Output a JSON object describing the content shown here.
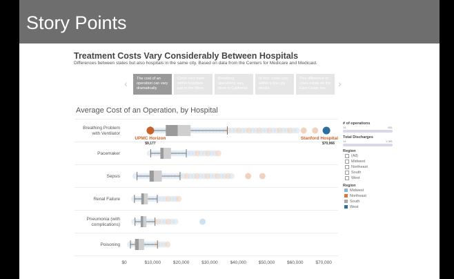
{
  "header": {
    "title": "Story Points"
  },
  "dashboard": {
    "title": "Treatment Costs Vary Considerably Between Hospitals",
    "subtitle": "Differences between states but also hospitals in the same city. Based on data from the Centers for Medicare and Medicaid."
  },
  "story_points": [
    {
      "label": "The cost of an operation can vary dramatically",
      "active": true
    },
    {
      "label": "Costs vary even within hospitals just in the West"
    },
    {
      "label": "Breathing operations vary most in California"
    },
    {
      "label": "In fact, costs vary within a few city blocks"
    },
    {
      "label": "This difference in costs exists on the East Coast, too"
    }
  ],
  "icons": {
    "prev": "chevron-left-icon",
    "next": "chevron-right-icon"
  },
  "sidebar": {
    "ops": {
      "title": "# of operations",
      "min": "14",
      "max": "651"
    },
    "discharges": {
      "title": "Total Discharges",
      "min": "14",
      "max": "1,381"
    },
    "region_filter": {
      "title": "Region",
      "items": [
        "(All)",
        "Midwest",
        "Northeast",
        "South",
        "West"
      ]
    },
    "region_legend": {
      "title": "Region",
      "items": [
        {
          "label": "Midwest",
          "color": "#8fb2d4"
        },
        {
          "label": "Northeast",
          "color": "#d9763a"
        },
        {
          "label": "South",
          "color": "#a8a8a8"
        },
        {
          "label": "West",
          "color": "#2e6f9e"
        }
      ]
    }
  },
  "chart_data": {
    "type": "boxplot",
    "title": "Average Cost of an Operation, by Hospital",
    "xlim": [
      0,
      72000
    ],
    "xticks": [
      "$0",
      "$10,000",
      "$20,000",
      "$30,000",
      "$40,000",
      "$50,000",
      "$60,000",
      "$70,000"
    ],
    "categories": [
      "Breathing Problem with Ventilator",
      "Pacemaker",
      "Sepsis",
      "Renal Failure",
      "Pneumonia (with complications)",
      "Poisoning"
    ],
    "boxes": [
      {
        "min": 9177,
        "q1": 14600,
        "median": 18800,
        "q3": 23300,
        "whisker_high": 36200,
        "cloud": [
          9000,
          61000
        ],
        "outliers": [
          63000,
          67000
        ]
      },
      {
        "min": 9300,
        "q1": 12700,
        "median": 13800,
        "q3": 16400,
        "whisker_high": 21800,
        "cloud": [
          9000,
          33000
        ],
        "outliers": []
      },
      {
        "min": 4500,
        "q1": 8900,
        "median": 10400,
        "q3": 13200,
        "whisker_high": 19600,
        "cloud": [
          4000,
          38500
        ],
        "outliers": [
          43500,
          48500
        ]
      },
      {
        "min": 3600,
        "q1": 6000,
        "median": 6900,
        "q3": 8300,
        "whisker_high": 11600,
        "cloud": [
          3500,
          19500
        ],
        "outliers": []
      },
      {
        "min": 3800,
        "q1": 5800,
        "median": 6700,
        "q3": 7800,
        "whisker_high": 10800,
        "cloud": [
          3500,
          18500
        ],
        "outliers": [
          27500
        ]
      },
      {
        "min": 2200,
        "q1": 3800,
        "median": 5100,
        "q3": 7000,
        "whisker_high": 11700,
        "cloud": [
          2000,
          15500
        ],
        "outliers": []
      }
    ],
    "annotations": [
      {
        "label": "UPMC Horizon",
        "value": "$9,177",
        "x": 9177,
        "color": "#c8622a"
      },
      {
        "label": "Stanford Hospital",
        "value": "$70,966",
        "x": 70966,
        "color": "#2e6f9e"
      }
    ]
  }
}
